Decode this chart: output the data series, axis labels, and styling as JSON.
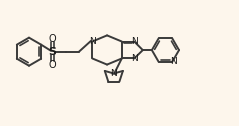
{
  "background_color": "#fdf6ec",
  "bond_color": "#3a3a3a",
  "bond_width": 1.4,
  "text_color": "#1a1a1a",
  "font_size": 6.5,
  "xlim": [
    0,
    10.5
  ],
  "ylim": [
    1.2,
    6.0
  ]
}
